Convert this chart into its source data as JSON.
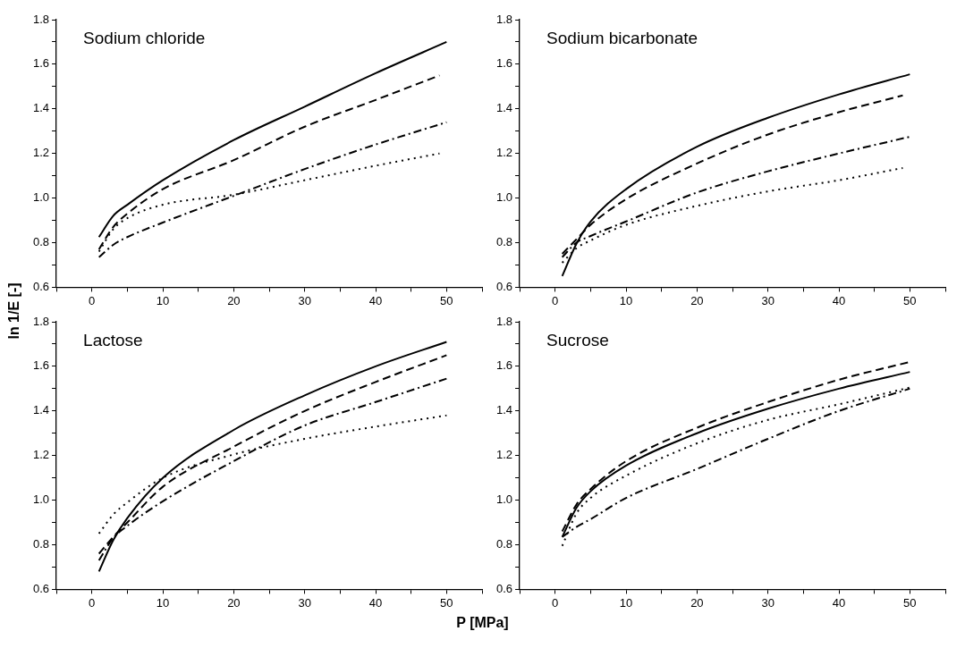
{
  "chart_data": [
    {
      "type": "line",
      "title": "Sodium chloride",
      "ylabel": "ln 1/E [-]",
      "xlim": [
        -5,
        55
      ],
      "xticks": [
        {
          "value": -5,
          "label": null
        },
        0,
        {
          "value": 5,
          "label": null
        },
        10,
        {
          "value": 15,
          "label": null
        },
        20,
        {
          "value": 25,
          "label": null
        },
        30,
        {
          "value": 35,
          "label": null
        },
        40,
        {
          "value": 45,
          "label": null
        },
        50,
        {
          "value": 55,
          "label": null
        }
      ],
      "ylim": [
        0.6,
        1.8
      ],
      "yticks": [
        0.6,
        {
          "value": 0.7,
          "label": null
        },
        0.8,
        {
          "value": 0.9,
          "label": null
        },
        {
          "value": 1,
          "label": "1.0"
        },
        {
          "value": 1.1,
          "label": null
        },
        1.2,
        {
          "value": 1.3,
          "label": null
        },
        1.4,
        {
          "value": 1.5,
          "label": null
        },
        1.6,
        {
          "value": 1.7,
          "label": null
        },
        1.8
      ],
      "series": [
        {
          "color": "#000000",
          "line_style": "solid",
          "x": [
            1,
            3,
            5,
            10,
            20,
            30,
            40,
            50
          ],
          "values": [
            0.825,
            0.92,
            0.97,
            1.08,
            1.26,
            1.41,
            1.56,
            1.7
          ]
        },
        {
          "color": "#000000",
          "line_style": "dashed",
          "x": [
            1,
            3,
            5,
            10,
            20,
            30,
            40,
            49
          ],
          "values": [
            0.77,
            0.87,
            0.93,
            1.04,
            1.17,
            1.32,
            1.44,
            1.55
          ]
        },
        {
          "color": "#000000",
          "line_style": "dashdot",
          "x": [
            1,
            3,
            5,
            10,
            20,
            30,
            40,
            50
          ],
          "values": [
            0.735,
            0.79,
            0.825,
            0.89,
            1.01,
            1.13,
            1.24,
            1.34
          ]
        },
        {
          "color": "#000000",
          "line_style": "dotted",
          "x": [
            1,
            3,
            5,
            10,
            20,
            30,
            40,
            49
          ],
          "values": [
            0.76,
            0.86,
            0.91,
            0.97,
            1.015,
            1.08,
            1.145,
            1.2
          ]
        }
      ]
    },
    {
      "type": "line",
      "title": "Sodium bicarbonate",
      "xlim": [
        -5,
        55
      ],
      "xticks": [
        {
          "value": -5,
          "label": null
        },
        0,
        {
          "value": 5,
          "label": null
        },
        10,
        {
          "value": 15,
          "label": null
        },
        20,
        {
          "value": 25,
          "label": null
        },
        30,
        {
          "value": 35,
          "label": null
        },
        40,
        {
          "value": 45,
          "label": null
        },
        50,
        {
          "value": 55,
          "label": null
        }
      ],
      "ylim": [
        0.6,
        1.8
      ],
      "yticks": [
        0.6,
        {
          "value": 0.7,
          "label": null
        },
        0.8,
        {
          "value": 0.9,
          "label": null
        },
        {
          "value": 1,
          "label": "1.0"
        },
        {
          "value": 1.1,
          "label": null
        },
        1.2,
        {
          "value": 1.3,
          "label": null
        },
        1.4,
        {
          "value": 1.5,
          "label": null
        },
        1.6,
        {
          "value": 1.7,
          "label": null
        },
        1.8
      ],
      "series": [
        {
          "color": "#000000",
          "line_style": "solid",
          "x": [
            1,
            3,
            5,
            10,
            20,
            30,
            40,
            50
          ],
          "values": [
            0.65,
            0.795,
            0.895,
            1.04,
            1.23,
            1.36,
            1.465,
            1.555
          ]
        },
        {
          "color": "#000000",
          "line_style": "dashed",
          "x": [
            1,
            3,
            5,
            10,
            20,
            30,
            40,
            49
          ],
          "values": [
            0.75,
            0.815,
            0.88,
            0.995,
            1.155,
            1.285,
            1.385,
            1.46
          ]
        },
        {
          "color": "#000000",
          "line_style": "dashdot",
          "x": [
            1,
            3,
            5,
            10,
            20,
            30,
            40,
            50
          ],
          "values": [
            0.735,
            0.8,
            0.83,
            0.895,
            1.025,
            1.12,
            1.2,
            1.275
          ]
        },
        {
          "color": "#000000",
          "line_style": "dotted",
          "x": [
            1,
            3,
            5,
            10,
            20,
            30,
            40,
            49
          ],
          "values": [
            0.71,
            0.775,
            0.81,
            0.88,
            0.965,
            1.03,
            1.08,
            1.135
          ]
        }
      ]
    },
    {
      "type": "line",
      "title": "Lactose",
      "xlabel": "P [MPa]",
      "xlim": [
        -5,
        55
      ],
      "xticks": [
        {
          "value": -5,
          "label": null
        },
        0,
        {
          "value": 5,
          "label": null
        },
        10,
        {
          "value": 15,
          "label": null
        },
        20,
        {
          "value": 25,
          "label": null
        },
        30,
        {
          "value": 35,
          "label": null
        },
        40,
        {
          "value": 45,
          "label": null
        },
        50,
        {
          "value": 55,
          "label": null
        }
      ],
      "ylim": [
        0.6,
        1.8
      ],
      "yticks": [
        0.6,
        {
          "value": 0.7,
          "label": null
        },
        0.8,
        {
          "value": 0.9,
          "label": null
        },
        {
          "value": 1,
          "label": "1.0"
        },
        {
          "value": 1.1,
          "label": null
        },
        1.2,
        {
          "value": 1.3,
          "label": null
        },
        1.4,
        {
          "value": 1.5,
          "label": null
        },
        1.6,
        {
          "value": 1.7,
          "label": null
        },
        1.8
      ],
      "series": [
        {
          "color": "#000000",
          "line_style": "solid",
          "x": [
            1,
            3,
            5,
            10,
            20,
            30,
            40,
            50
          ],
          "values": [
            0.68,
            0.82,
            0.92,
            1.1,
            1.315,
            1.47,
            1.6,
            1.71
          ]
        },
        {
          "color": "#000000",
          "line_style": "dashed",
          "x": [
            1,
            3,
            5,
            10,
            20,
            30,
            40,
            50
          ],
          "values": [
            0.76,
            0.835,
            0.9,
            1.06,
            1.24,
            1.4,
            1.53,
            1.65
          ]
        },
        {
          "color": "#000000",
          "line_style": "dashdot",
          "x": [
            1,
            3,
            5,
            10,
            20,
            30,
            40,
            50
          ],
          "values": [
            0.73,
            0.83,
            0.885,
            0.995,
            1.175,
            1.335,
            1.44,
            1.545
          ]
        },
        {
          "color": "#000000",
          "line_style": "dotted",
          "x": [
            1,
            3,
            5,
            10,
            20,
            30,
            40,
            50
          ],
          "values": [
            0.85,
            0.935,
            0.99,
            1.1,
            1.205,
            1.275,
            1.33,
            1.38
          ]
        }
      ]
    },
    {
      "type": "line",
      "title": "Sucrose",
      "xlim": [
        -5,
        55
      ],
      "xticks": [
        {
          "value": -5,
          "label": null
        },
        0,
        {
          "value": 5,
          "label": null
        },
        10,
        {
          "value": 15,
          "label": null
        },
        20,
        {
          "value": 25,
          "label": null
        },
        30,
        {
          "value": 35,
          "label": null
        },
        40,
        {
          "value": 45,
          "label": null
        },
        50,
        {
          "value": 55,
          "label": null
        }
      ],
      "ylim": [
        0.6,
        1.8
      ],
      "yticks": [
        0.6,
        {
          "value": 0.7,
          "label": null
        },
        0.8,
        {
          "value": 0.9,
          "label": null
        },
        {
          "value": 1,
          "label": "1.0"
        },
        {
          "value": 1.1,
          "label": null
        },
        1.2,
        {
          "value": 1.3,
          "label": null
        },
        1.4,
        {
          "value": 1.5,
          "label": null
        },
        1.6,
        {
          "value": 1.7,
          "label": null
        },
        1.8
      ],
      "series": [
        {
          "color": "#000000",
          "line_style": "solid",
          "x": [
            1,
            3,
            5,
            10,
            20,
            30,
            40,
            50
          ],
          "values": [
            0.835,
            0.965,
            1.04,
            1.155,
            1.3,
            1.41,
            1.5,
            1.575
          ]
        },
        {
          "color": "#000000",
          "line_style": "dashed",
          "x": [
            1,
            3,
            5,
            10,
            20,
            30,
            40,
            50
          ],
          "values": [
            0.86,
            0.98,
            1.05,
            1.175,
            1.325,
            1.44,
            1.54,
            1.62
          ]
        },
        {
          "color": "#000000",
          "line_style": "dashdot",
          "x": [
            1,
            3,
            5,
            10,
            20,
            30,
            40,
            50
          ],
          "values": [
            0.835,
            0.88,
            0.915,
            1.01,
            1.14,
            1.275,
            1.4,
            1.5
          ]
        },
        {
          "color": "#000000",
          "line_style": "dotted",
          "x": [
            1,
            3,
            5,
            10,
            20,
            30,
            40,
            50
          ],
          "values": [
            0.795,
            0.94,
            1.01,
            1.11,
            1.255,
            1.36,
            1.43,
            1.505
          ]
        }
      ]
    }
  ]
}
